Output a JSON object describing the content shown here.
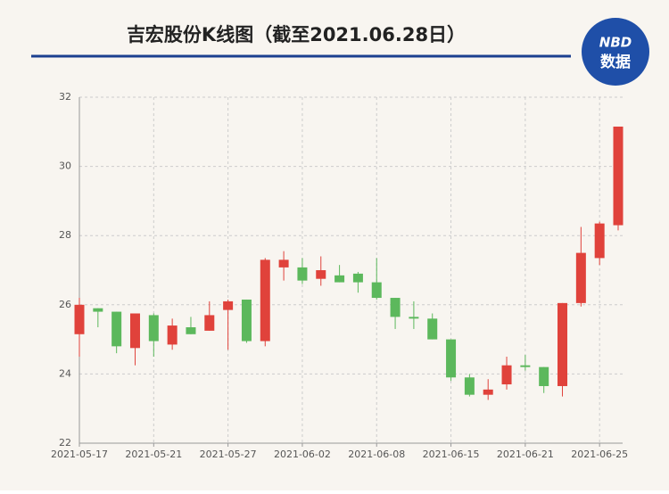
{
  "chart_data": {
    "type": "candlestick",
    "title": "吉宏股份K线图（截至2021.06.28日）",
    "categories": [
      "2021-05-17",
      null,
      null,
      null,
      "2021-05-21",
      null,
      null,
      null,
      "2021-05-27",
      null,
      null,
      null,
      "2021-06-02",
      null,
      null,
      null,
      "2021-06-08",
      null,
      null,
      null,
      "2021-06-15",
      null,
      null,
      null,
      "2021-06-21",
      null,
      null,
      null,
      "2021-06-25",
      null
    ],
    "open": [
      25.15,
      25.9,
      25.8,
      24.75,
      25.7,
      24.85,
      25.35,
      25.25,
      25.85,
      26.15,
      24.95,
      27.08,
      27.08,
      26.75,
      26.85,
      26.9,
      26.65,
      26.2,
      25.65,
      25.6,
      25.0,
      23.9,
      23.4,
      23.7,
      24.25,
      24.2,
      23.65,
      26.05,
      27.35,
      28.3
    ],
    "high": [
      26.2,
      25.9,
      25.8,
      25.75,
      25.75,
      25.6,
      25.65,
      26.1,
      26.15,
      26.15,
      27.35,
      27.55,
      27.35,
      27.4,
      27.15,
      26.95,
      27.35,
      26.2,
      26.1,
      25.75,
      25.0,
      24.0,
      23.85,
      24.5,
      24.55,
      24.2,
      26.05,
      28.25,
      28.4,
      31.15
    ],
    "low": [
      24.5,
      25.35,
      24.6,
      24.25,
      24.5,
      24.7,
      25.15,
      25.25,
      24.7,
      24.9,
      24.8,
      26.7,
      26.6,
      26.55,
      26.65,
      26.35,
      26.15,
      25.3,
      25.3,
      25.0,
      23.8,
      23.35,
      23.25,
      23.55,
      24.1,
      23.45,
      23.35,
      25.95,
      27.15,
      28.15
    ],
    "close": [
      26.0,
      25.8,
      24.8,
      25.75,
      24.95,
      25.4,
      25.15,
      25.7,
      26.1,
      24.95,
      27.3,
      27.3,
      26.7,
      27.0,
      26.65,
      26.65,
      26.2,
      25.65,
      25.6,
      25.0,
      23.9,
      23.4,
      23.55,
      24.25,
      24.2,
      23.65,
      26.05,
      27.5,
      28.35,
      31.15
    ],
    "up_color": "#e0423b",
    "down_color": "#5cb85c",
    "ylim": [
      22,
      32
    ],
    "yticks": [
      22,
      24,
      26,
      28,
      30,
      32
    ],
    "grid": true
  },
  "logo": {
    "top": "NBD",
    "bottom": "数据"
  }
}
